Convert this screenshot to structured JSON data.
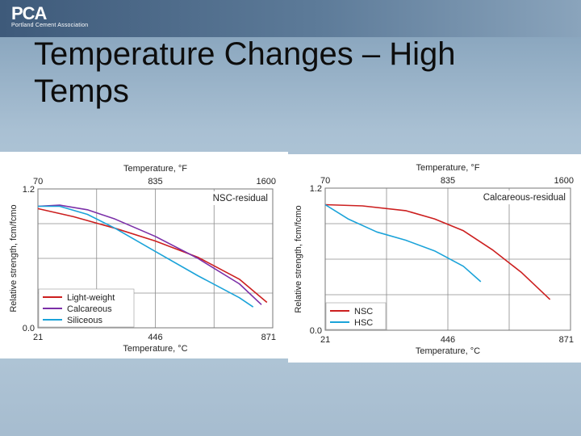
{
  "slide": {
    "title_line1": "Temperature Changes – High",
    "title_line2": "Temps"
  },
  "logo": {
    "mark": "PCA",
    "subtitle": "Portland Cement Association"
  },
  "chart_data": [
    {
      "type": "line",
      "annotation": "NSC-residual",
      "top_axis": {
        "label": "Temperature, °F",
        "ticks": [
          "70",
          "835",
          "1600"
        ]
      },
      "xlabel": "Temperature, °C",
      "ylabel": "Relative strength, fcm/fcmo",
      "xlim": [
        21,
        871
      ],
      "ylim": [
        0.0,
        1.2
      ],
      "x_ticks": [
        21,
        446,
        871
      ],
      "y_ticks": [
        "0.0",
        "1.2"
      ],
      "grid": true,
      "legend_placement": "bottom-left",
      "series": [
        {
          "name": "Light-weight",
          "color": "#cc1f1f",
          "x": [
            21,
            150,
            300,
            446,
            600,
            750,
            850
          ],
          "y": [
            1.03,
            0.96,
            0.86,
            0.75,
            0.61,
            0.42,
            0.22
          ]
        },
        {
          "name": "Calcareous",
          "color": "#7b2fa8",
          "x": [
            21,
            100,
            200,
            300,
            446,
            600,
            750,
            830
          ],
          "y": [
            1.05,
            1.06,
            1.02,
            0.94,
            0.79,
            0.6,
            0.38,
            0.2
          ]
        },
        {
          "name": "Siliceous",
          "color": "#1ba3d9",
          "x": [
            21,
            100,
            200,
            300,
            446,
            600,
            750,
            800
          ],
          "y": [
            1.05,
            1.05,
            0.98,
            0.86,
            0.66,
            0.45,
            0.26,
            0.18
          ]
        }
      ]
    },
    {
      "type": "line",
      "annotation": "Calcareous-residual",
      "top_axis": {
        "label": "Temperature, °F",
        "ticks": [
          "70",
          "835",
          "1600"
        ]
      },
      "xlabel": "Temperature, °C",
      "ylabel": "Relative strength, fcm/fcmo",
      "xlim": [
        21,
        871
      ],
      "ylim": [
        0.0,
        1.2
      ],
      "x_ticks": [
        21,
        446,
        871
      ],
      "y_ticks": [
        "0.0",
        "1.2"
      ],
      "grid": true,
      "legend_placement": "bottom-left",
      "series": [
        {
          "name": "NSC",
          "color": "#cc1f1f",
          "x": [
            21,
            150,
            300,
            400,
            500,
            600,
            700,
            800
          ],
          "y": [
            1.06,
            1.05,
            1.01,
            0.94,
            0.84,
            0.68,
            0.49,
            0.26
          ]
        },
        {
          "name": "HSC",
          "color": "#1ba3d9",
          "x": [
            21,
            100,
            200,
            300,
            400,
            500,
            560
          ],
          "y": [
            1.06,
            0.94,
            0.83,
            0.76,
            0.67,
            0.54,
            0.41
          ]
        }
      ]
    }
  ]
}
